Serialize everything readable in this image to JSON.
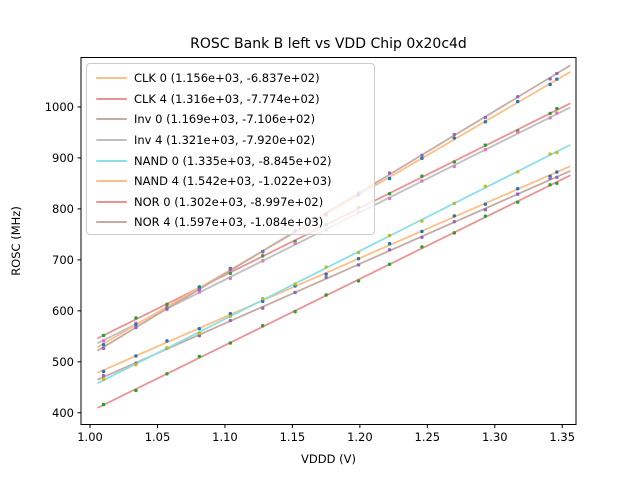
{
  "chart_data": {
    "type": "scatter",
    "title": "ROSC Bank B left vs VDD Chip 0x20c4d",
    "xlabel": "VDDD (V)",
    "ylabel": "ROSC (MHz)",
    "xlim": [
      0.9933,
      1.3602
    ],
    "ylim": [
      377,
      1097
    ],
    "grid": false,
    "legend_position": "upper-left",
    "xticks": [
      "1.00",
      "1.05",
      "1.10",
      "1.15",
      "1.20",
      "1.25",
      "1.30",
      "1.35"
    ],
    "xtick_values": [
      1.0,
      1.05,
      1.1,
      1.15,
      1.2,
      1.25,
      1.3,
      1.35
    ],
    "yticks": [
      "400",
      "500",
      "600",
      "700",
      "800",
      "900",
      "1000"
    ],
    "ytick_values": [
      400,
      500,
      600,
      700,
      800,
      900,
      1000
    ],
    "x_points": [
      1.01,
      1.034,
      1.057,
      1.081,
      1.104,
      1.128,
      1.152,
      1.175,
      1.199,
      1.222,
      1.246,
      1.27,
      1.293,
      1.317,
      1.341,
      1.346
    ],
    "line_span": [
      1.006,
      1.3555
    ],
    "series": [
      {
        "label": "CLK 0 (1.156e+03, -6.837e+02)",
        "slope": 1156.0,
        "intercept": -683.7,
        "line_color": "#ffbf87",
        "marker_color": "#1f77b4"
      },
      {
        "label": "CLK 4 (1.316e+03, -7.774e+02)",
        "slope": 1316.0,
        "intercept": -777.4,
        "line_color": "#eb9394",
        "marker_color": "#2ca02c"
      },
      {
        "label": "Inv 0 (1.169e+03, -7.106e+02)",
        "slope": 1169.0,
        "intercept": -710.6,
        "line_color": "#c6aba5",
        "marker_color": "#9467bd"
      },
      {
        "label": "Inv 4 (1.321e+03, -7.920e+02)",
        "slope": 1321.0,
        "intercept": -792.0,
        "line_color": "#bfbfbf",
        "marker_color": "#e377c2"
      },
      {
        "label": "NAND 0 (1.335e+03, -8.845e+02)",
        "slope": 1335.0,
        "intercept": -884.5,
        "line_color": "#8bdfe7",
        "marker_color": "#bcbd22"
      },
      {
        "label": "NAND 4 (1.542e+03, -1.022e+03)",
        "slope": 1542.0,
        "intercept": -1022.0,
        "line_color": "#ffbf87",
        "marker_color": "#1f77b4"
      },
      {
        "label": "NOR 0 (1.302e+03, -8.997e+02)",
        "slope": 1302.0,
        "intercept": -899.7,
        "line_color": "#eb9394",
        "marker_color": "#2ca02c"
      },
      {
        "label": "NOR 4 (1.597e+03, -1.084e+03)",
        "slope": 1597.0,
        "intercept": -1084.0,
        "line_color": "#c6aba5",
        "marker_color": "#9467bd"
      }
    ]
  }
}
